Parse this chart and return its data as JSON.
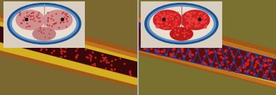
{
  "fig_width": 4.0,
  "fig_height": 1.39,
  "dpi": 100,
  "bg_left": "#7a6830",
  "bg_right": "#7a7030",
  "divider_color": "#b0b0b0",
  "artery": {
    "outer_color": "#a05818",
    "plaque_color": "#d4b020",
    "lumen_color": "#3a0808",
    "lumen_edge_color": "#c03018",
    "stent_color": "#2040a0",
    "stent_lumen_color": "#601020"
  },
  "inset_left": {
    "bg": "#d8cfc0",
    "outer_ring": "#1a5090",
    "mid_ring": "#6090c0",
    "inner_bg": "#e8ddd0",
    "corpus_color": "#d09090",
    "corpus_dot_color": "#c03030",
    "urethra_color": "#c08080",
    "septum_color": "#b09090"
  },
  "inset_right": {
    "bg": "#d8cfc0",
    "outer_ring": "#1a5090",
    "mid_ring": "#6090c0",
    "inner_bg": "#e8ddd0",
    "corpus_color": "#cc2020",
    "corpus_dot_color": "#ee4040",
    "urethra_color": "#bb1818",
    "septum_color": "#a07070"
  }
}
